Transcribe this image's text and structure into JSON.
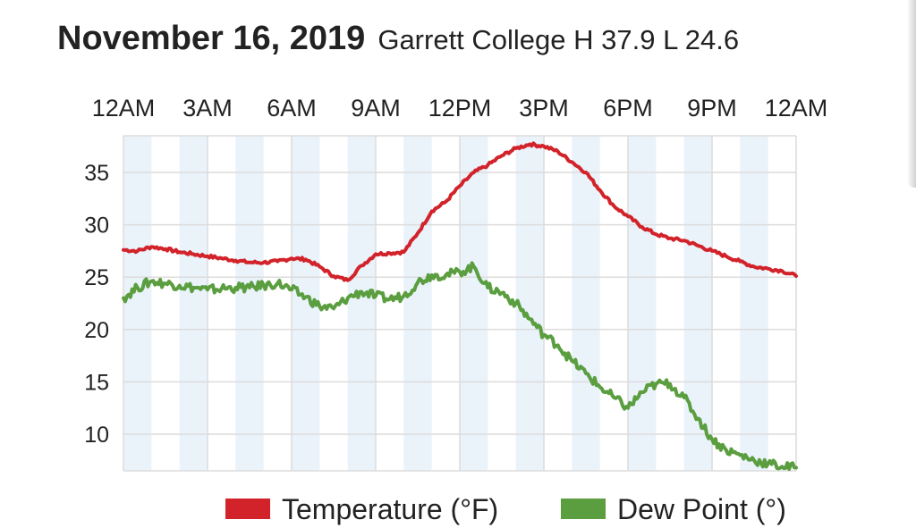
{
  "header": {
    "title": "November 16, 2019",
    "subtitle": "Garrett College H 37.9 L 24.6"
  },
  "colors": {
    "temperature": "#d2232a",
    "dew_point": "#5a9e3f",
    "band": "#eaf2fa",
    "grid": "#dcdcdc"
  },
  "chart_data": {
    "type": "line",
    "x_unit": "hours since midnight",
    "x_ticks": [
      "12AM",
      "3AM",
      "6AM",
      "9AM",
      "12PM",
      "3PM",
      "6PM",
      "9PM",
      "12AM"
    ],
    "y_ticks": [
      35,
      30,
      25,
      20,
      15,
      10
    ],
    "xlim": [
      0,
      24
    ],
    "ylim": [
      6.5,
      38.5
    ],
    "grid": true,
    "legend_position": "bottom",
    "series": [
      {
        "name": "Temperature (°F)",
        "color": "#d2232a",
        "x": [
          0,
          0.5,
          1,
          1.5,
          2,
          2.5,
          3,
          3.5,
          4,
          4.5,
          5,
          5.5,
          6,
          6.5,
          7,
          7.5,
          8,
          8.5,
          9,
          9.5,
          10,
          10.5,
          11,
          11.5,
          12,
          12.5,
          13,
          13.5,
          14,
          14.5,
          15,
          15.5,
          16,
          16.5,
          17,
          17.5,
          18,
          18.5,
          19,
          19.5,
          20,
          20.5,
          21,
          21.5,
          22,
          22.5,
          23,
          23.5,
          24
        ],
        "values": [
          27.6,
          27.5,
          27.9,
          27.7,
          27.4,
          27.2,
          27.0,
          26.8,
          26.6,
          26.4,
          26.4,
          26.5,
          26.8,
          26.7,
          26.0,
          25.1,
          24.7,
          26.1,
          27.2,
          27.3,
          27.4,
          29.2,
          31.3,
          32.2,
          33.7,
          35.0,
          35.7,
          36.6,
          37.3,
          37.7,
          37.5,
          37.0,
          36.0,
          35.0,
          33.3,
          31.8,
          30.8,
          29.8,
          29.1,
          28.7,
          28.5,
          28.0,
          27.5,
          27.0,
          26.5,
          26.0,
          25.8,
          25.6,
          25.1
        ]
      },
      {
        "name": "Dew Point (°)",
        "color": "#5a9e3f",
        "x": [
          0,
          0.5,
          1,
          1.5,
          2,
          2.5,
          3,
          3.5,
          4,
          4.5,
          5,
          5.5,
          6,
          6.5,
          7,
          7.5,
          8,
          8.5,
          9,
          9.5,
          10,
          10.5,
          11,
          11.5,
          12,
          12.5,
          13,
          13.5,
          14,
          14.5,
          15,
          15.5,
          16,
          16.5,
          17,
          17.5,
          18,
          18.5,
          19,
          19.5,
          20,
          20.5,
          21,
          21.5,
          22,
          22.5,
          23,
          23.5,
          24
        ],
        "values": [
          23.0,
          24.0,
          24.6,
          24.4,
          24.2,
          24.0,
          23.8,
          23.9,
          24.0,
          24.0,
          24.2,
          24.4,
          23.8,
          23.1,
          22.2,
          22.0,
          23.0,
          23.6,
          23.2,
          22.9,
          23.2,
          24.5,
          25.2,
          25.2,
          25.5,
          26.0,
          24.0,
          23.5,
          22.5,
          21.0,
          19.5,
          18.5,
          17.0,
          15.8,
          14.5,
          13.5,
          12.5,
          14.0,
          14.8,
          14.8,
          13.5,
          11.5,
          9.5,
          8.5,
          8.0,
          7.5,
          7.2,
          6.9,
          6.8
        ]
      }
    ]
  }
}
